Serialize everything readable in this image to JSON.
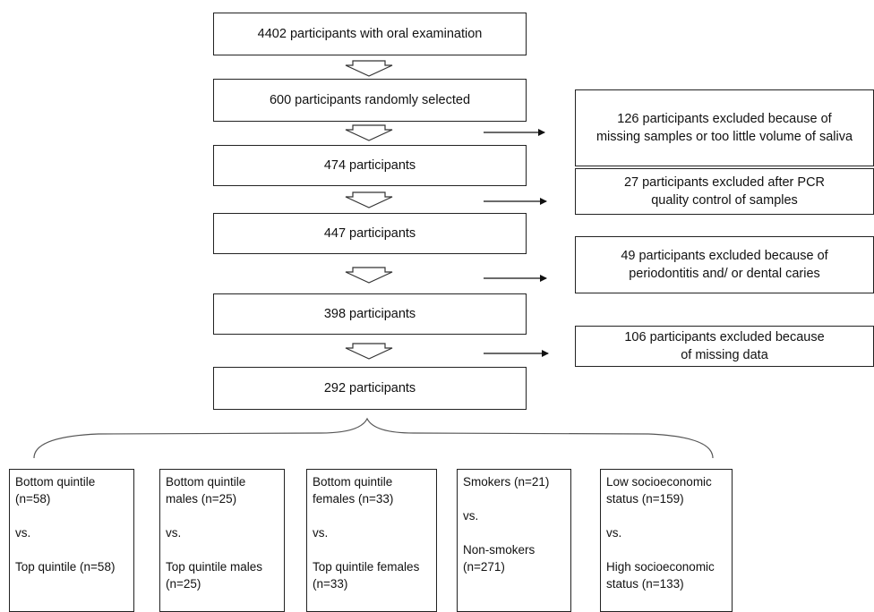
{
  "flow": {
    "steps": [
      "4402 participants with oral examination",
      "600 participants randomly selected",
      "474 participants",
      "447 participants",
      "398 participants",
      "292 participants"
    ],
    "exclusions": [
      {
        "line1": "126 participants excluded because of",
        "line2": "missing samples or too little volume of saliva"
      },
      {
        "line1": "27 participants excluded after PCR",
        "line2": "quality control of samples"
      },
      {
        "line1": "49 participants excluded because of",
        "line2": "periodontitis and/ or dental caries"
      },
      {
        "line1": "106 participants excluded because",
        "line2": "of missing data"
      }
    ]
  },
  "groups": [
    {
      "a1": "Bottom quintile",
      "a2": "(n=58)",
      "vs": "vs.",
      "b1": "Top quintile (n=58)",
      "b2": ""
    },
    {
      "a1": "Bottom quintile",
      "a2": "males (n=25)",
      "vs": "vs.",
      "b1": "Top quintile males",
      "b2": "(n=25)"
    },
    {
      "a1": "Bottom quintile",
      "a2": "females (n=33)",
      "vs": "vs.",
      "b1": "Top quintile females",
      "b2": "(n=33)"
    },
    {
      "a1": "Smokers (n=21)",
      "a2": "",
      "vs": "vs.",
      "b1": "Non-smokers",
      "b2": "(n=271)"
    },
    {
      "a1": "Low socioeconomic",
      "a2": "status (n=159)",
      "vs": "vs.",
      "b1": "High socioeconomic",
      "b2": "status (n=133)"
    }
  ]
}
